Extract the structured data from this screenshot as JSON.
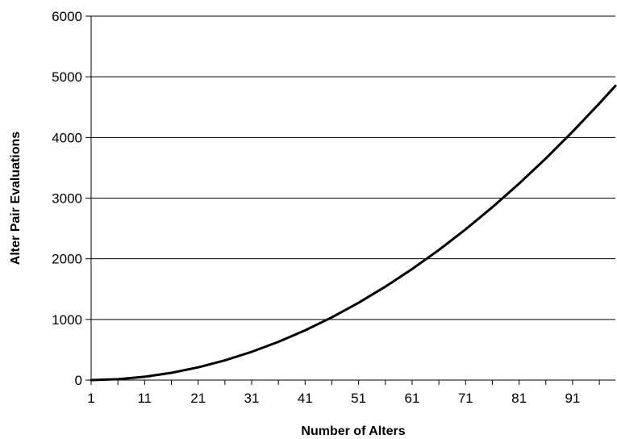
{
  "chart_data": {
    "type": "line",
    "title": "",
    "xlabel": "Number of Alters",
    "ylabel": "Alter Pair Evaluations",
    "xlim": [
      1,
      99
    ],
    "ylim": [
      0,
      6000
    ],
    "x_ticks": [
      1,
      11,
      21,
      31,
      41,
      51,
      61,
      71,
      81,
      91
    ],
    "y_ticks": [
      0,
      1000,
      2000,
      3000,
      4000,
      5000,
      6000
    ],
    "grid": "horizontal",
    "legend": "none",
    "series_color": "#000000",
    "series": [
      {
        "x": [
          1,
          6,
          11,
          16,
          21,
          26,
          31,
          36,
          41,
          46,
          51,
          56,
          61,
          66,
          71,
          76,
          81,
          86,
          91,
          96,
          99
        ],
        "values": [
          0,
          15,
          55,
          120,
          210,
          325,
          465,
          630,
          820,
          1035,
          1275,
          1540,
          1830,
          2145,
          2485,
          2850,
          3240,
          3655,
          4095,
          4560,
          4850
        ]
      }
    ]
  }
}
